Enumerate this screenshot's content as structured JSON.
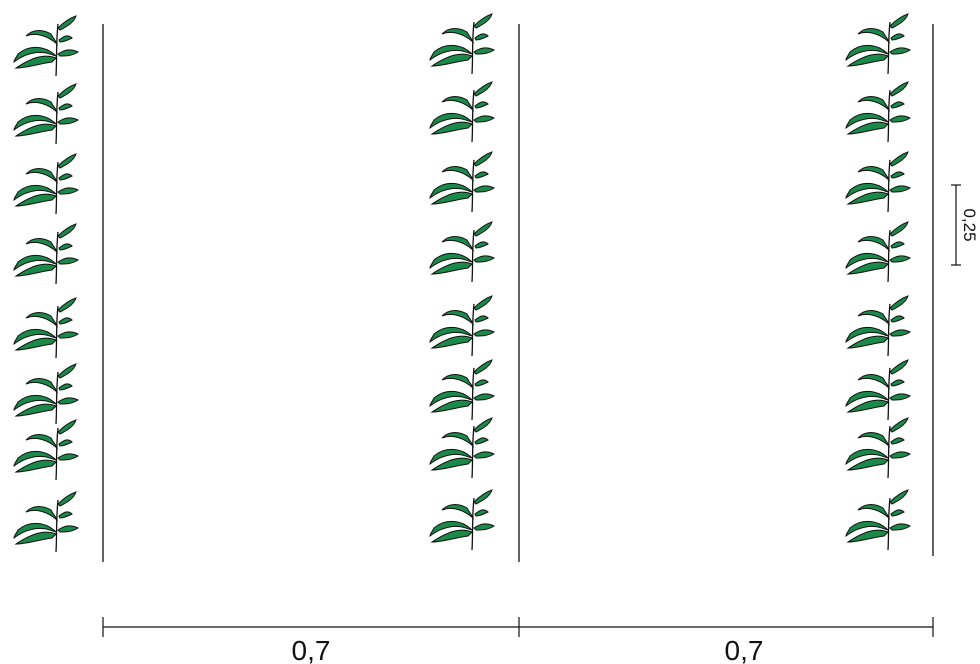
{
  "diagram": {
    "row_spacing_label_left": "0,7",
    "row_spacing_label_right": "0,7",
    "plant_spacing_label": "0,25",
    "rows": 3,
    "plants_per_row": 8,
    "leaf_color": "#1a8a4a",
    "line_color": "#111111"
  }
}
